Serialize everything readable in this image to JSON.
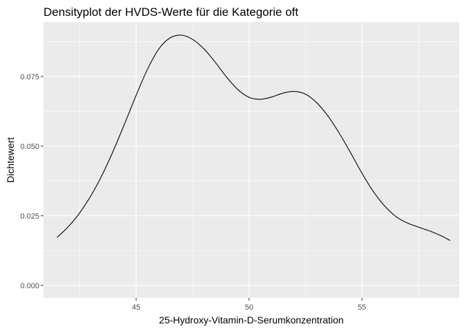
{
  "chart_data": {
    "type": "line",
    "title": "Densityplot der HVDS-Werte für die Kategorie oft",
    "xlabel": "25-Hydroxy-Vitamin-D-Serumkonzentration",
    "ylabel": "Dichtewert",
    "xlim": [
      40.9,
      59.3
    ],
    "ylim": [
      -0.0045,
      0.0945
    ],
    "x_ticks": [
      45,
      50,
      55
    ],
    "x_tick_labels": [
      "45",
      "50",
      "55"
    ],
    "y_ticks": [
      0,
      0.025,
      0.05,
      0.075
    ],
    "y_tick_labels": [
      "0.000",
      "0.025",
      "0.050",
      "0.075"
    ],
    "grid": true,
    "background": "#ebebeb",
    "grid_color": "#ffffff",
    "line_color": "#000000",
    "x": [
      41.5,
      42.0,
      42.5,
      43.0,
      43.5,
      44.0,
      44.5,
      45.0,
      45.5,
      46.0,
      46.5,
      47.0,
      47.5,
      48.0,
      48.5,
      49.0,
      49.5,
      50.0,
      50.5,
      51.0,
      51.5,
      52.0,
      52.5,
      53.0,
      53.5,
      54.0,
      54.5,
      55.0,
      55.5,
      56.0,
      56.5,
      57.0,
      57.5,
      58.0,
      58.5,
      58.9
    ],
    "y": [
      0.0172,
      0.0211,
      0.026,
      0.0322,
      0.0397,
      0.0485,
      0.0582,
      0.0682,
      0.0775,
      0.0848,
      0.0888,
      0.0898,
      0.0883,
      0.0849,
      0.0801,
      0.0748,
      0.0703,
      0.0675,
      0.0668,
      0.0676,
      0.069,
      0.0696,
      0.0686,
      0.0655,
      0.0607,
      0.0545,
      0.0475,
      0.0402,
      0.0337,
      0.0285,
      0.0247,
      0.0224,
      0.0209,
      0.0195,
      0.0178,
      0.0161
    ]
  }
}
